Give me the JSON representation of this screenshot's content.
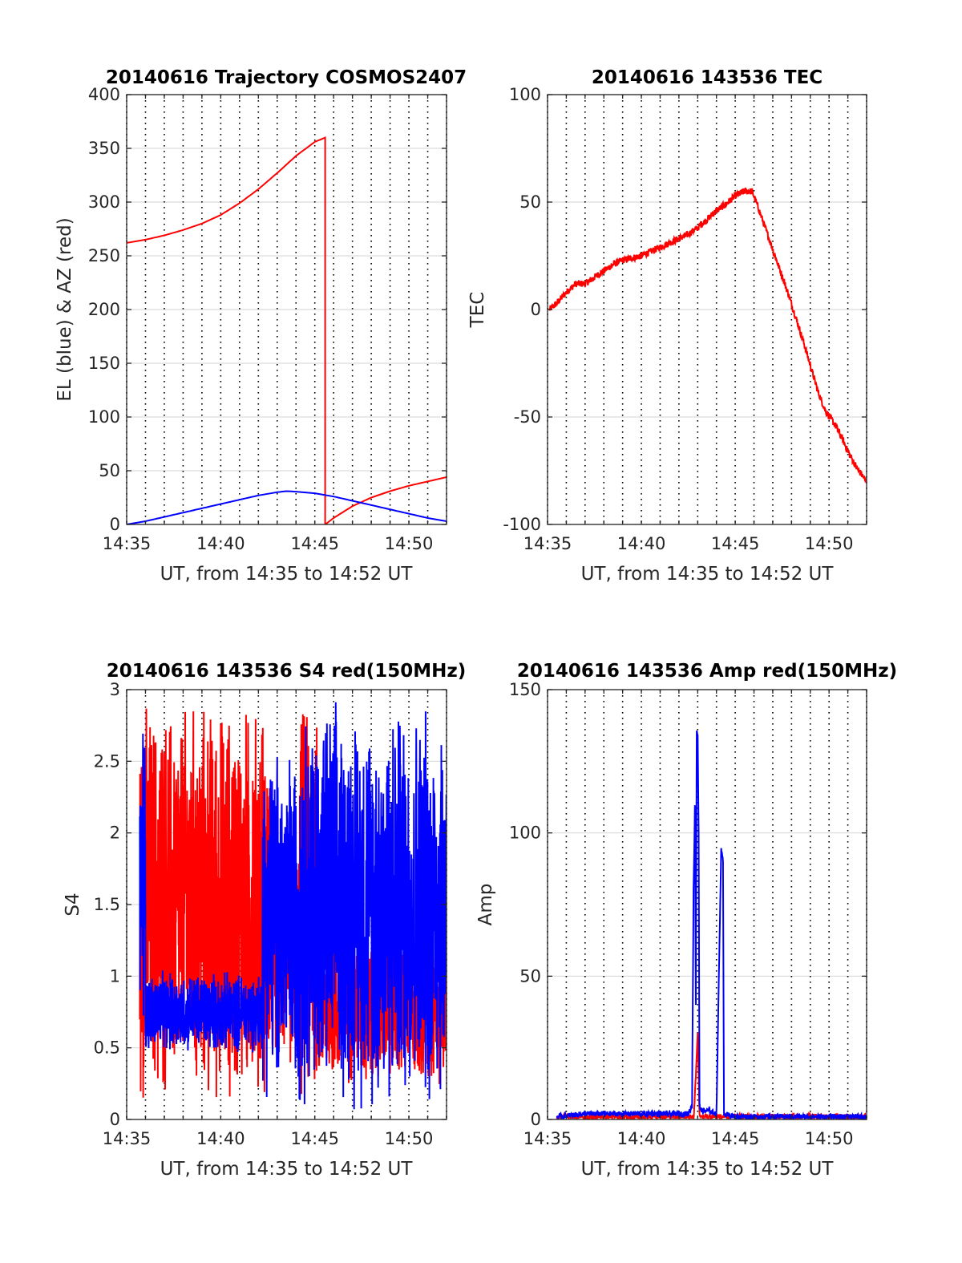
{
  "chart_data": [
    {
      "type": "line",
      "title": "20140616 Trajectory COSMOS2407",
      "xlabel": "UT, from 14:35 to 14:52 UT",
      "ylabel": "EL (blue) & AZ (red)",
      "xlim": [
        0,
        17
      ],
      "ylim": [
        0,
        400
      ],
      "x_unit": "minutes after 14:35 UT",
      "x_ticks": [
        {
          "v": 0,
          "label": "14:35"
        },
        {
          "v": 5,
          "label": "14:40"
        },
        {
          "v": 10,
          "label": "14:45"
        },
        {
          "v": 15,
          "label": "14:50"
        }
      ],
      "y_ticks": [
        {
          "v": 0,
          "label": "0"
        },
        {
          "v": 50,
          "label": "50"
        },
        {
          "v": 100,
          "label": "100"
        },
        {
          "v": 150,
          "label": "150"
        },
        {
          "v": 200,
          "label": "200"
        },
        {
          "v": 250,
          "label": "250"
        },
        {
          "v": 300,
          "label": "300"
        },
        {
          "v": 350,
          "label": "350"
        },
        {
          "v": 400,
          "label": "400"
        }
      ],
      "grid": "vertical dotted every 1 min, horizontal solid",
      "series": [
        {
          "color": "#ff0000",
          "x": [
            0,
            1,
            2,
            3,
            4,
            5,
            6,
            7,
            8,
            9,
            10,
            10.55,
            10.55,
            11,
            12,
            13,
            14,
            15,
            16,
            17
          ],
          "y": [
            262,
            265,
            269,
            274,
            280,
            288,
            299,
            312,
            327,
            343,
            356,
            360,
            0,
            6,
            17,
            25,
            31,
            36,
            40,
            44
          ]
        },
        {
          "color": "#0000ff",
          "x": [
            0,
            1,
            2,
            3,
            4,
            5,
            6,
            7,
            8,
            8.5,
            9,
            10,
            11,
            12,
            13,
            14,
            15,
            16,
            17
          ],
          "y": [
            0,
            3,
            7,
            11,
            15,
            19,
            23,
            27,
            30,
            31,
            30.5,
            29,
            26,
            22,
            18,
            14,
            10,
            6,
            3
          ]
        }
      ]
    },
    {
      "type": "line",
      "title": "20140616 143536 TEC",
      "xlabel": "UT, from 14:35 to 14:52 UT",
      "ylabel": "TEC",
      "xlim": [
        0,
        17
      ],
      "ylim": [
        -100,
        100
      ],
      "x_unit": "minutes after 14:35 UT",
      "x_ticks": [
        {
          "v": 0,
          "label": "14:35"
        },
        {
          "v": 5,
          "label": "14:40"
        },
        {
          "v": 10,
          "label": "14:45"
        },
        {
          "v": 15,
          "label": "14:50"
        }
      ],
      "y_ticks": [
        {
          "v": -100,
          "label": "-100"
        },
        {
          "v": -50,
          "label": "-50"
        },
        {
          "v": 0,
          "label": "0"
        },
        {
          "v": 50,
          "label": "50"
        },
        {
          "v": 100,
          "label": "100"
        }
      ],
      "grid": "vertical dotted every 1 min, horizontal solid",
      "series": [
        {
          "color": "#ff0000",
          "x": [
            0.1,
            0.5,
            1,
            1.5,
            2,
            2.5,
            3,
            3.5,
            4,
            4.5,
            5,
            5.5,
            6,
            6.5,
            7,
            7.5,
            8,
            8.5,
            9,
            9.5,
            10,
            10.5,
            10.9,
            11.2,
            11.6,
            12,
            12.4,
            12.8,
            13.2,
            13.6,
            14,
            14.4,
            14.8,
            15.2,
            15.6,
            16,
            16.5,
            17
          ],
          "y": [
            0,
            3,
            8,
            12,
            12,
            15,
            18,
            21,
            23,
            24,
            25,
            27,
            29,
            31,
            33,
            35,
            38,
            42,
            46,
            49,
            53,
            55,
            55,
            48,
            38,
            28,
            18,
            8,
            -3,
            -14,
            -26,
            -38,
            -47,
            -52,
            -58,
            -66,
            -74,
            -80
          ]
        }
      ]
    },
    {
      "type": "line",
      "title": "20140616 143536 S4 red(150MHz)",
      "xlabel": "UT, from 14:35 to 14:52 UT",
      "ylabel": "S4",
      "xlim": [
        0,
        17
      ],
      "ylim": [
        0,
        3
      ],
      "x_unit": "minutes after 14:35 UT",
      "x_ticks": [
        {
          "v": 0,
          "label": "14:35"
        },
        {
          "v": 5,
          "label": "14:40"
        },
        {
          "v": 10,
          "label": "14:45"
        },
        {
          "v": 15,
          "label": "14:50"
        }
      ],
      "y_ticks": [
        {
          "v": 0,
          "label": "0"
        },
        {
          "v": 0.5,
          "label": "0.5"
        },
        {
          "v": 1,
          "label": "1"
        },
        {
          "v": 1.5,
          "label": "1.5"
        },
        {
          "v": 2,
          "label": "2"
        },
        {
          "v": 2.5,
          "label": "2.5"
        },
        {
          "v": 3,
          "label": "3"
        }
      ],
      "grid": "vertical dotted every 1 min, horizontal solid",
      "series": [
        {
          "color": "#ff0000",
          "note_segments": [
            {
              "x": [
                0.7,
                7.6
              ],
              "y_range": [
                0,
                3
              ]
            },
            {
              "x": [
                7.6,
                9.2
              ],
              "y_range": [
                0.3,
                2.0
              ]
            },
            {
              "x": [
                9.2,
                10.1
              ],
              "y_range": [
                0,
                3
              ]
            },
            {
              "x": [
                10.1,
                17
              ],
              "y_range": [
                0.2,
                1.4
              ]
            }
          ]
        },
        {
          "color": "#0000ff",
          "note_segments": [
            {
              "x": [
                0.7,
                1.0
              ],
              "y_range": [
                0.5,
                3
              ]
            },
            {
              "x": [
                1.0,
                7.2
              ],
              "y_range": [
                0.45,
                1.05
              ]
            },
            {
              "x": [
                7.2,
                9.0
              ],
              "y_range": [
                0.1,
                2.7
              ]
            },
            {
              "x": [
                9.0,
                17
              ],
              "y_range": [
                0,
                3
              ]
            }
          ]
        }
      ]
    },
    {
      "type": "line",
      "title": "20140616 143536 Amp red(150MHz)",
      "xlabel": "UT, from 14:35 to 14:52 UT",
      "ylabel": "Amp",
      "xlim": [
        0,
        17
      ],
      "ylim": [
        0,
        150
      ],
      "x_unit": "minutes after 14:35 UT",
      "x_ticks": [
        {
          "v": 0,
          "label": "14:35"
        },
        {
          "v": 5,
          "label": "14:40"
        },
        {
          "v": 10,
          "label": "14:45"
        },
        {
          "v": 15,
          "label": "14:50"
        }
      ],
      "y_ticks": [
        {
          "v": 0,
          "label": "0"
        },
        {
          "v": 50,
          "label": "50"
        },
        {
          "v": 100,
          "label": "100"
        },
        {
          "v": 150,
          "label": "150"
        }
      ],
      "grid": "vertical dotted every 1 min, horizontal solid",
      "series": [
        {
          "color": "#ff0000",
          "x": [
            0.5,
            7.8,
            8.0,
            8.1,
            8.3,
            9.5,
            17
          ],
          "y": [
            1,
            1,
            30,
            1,
            1,
            1,
            1
          ]
        },
        {
          "color": "#0000ff",
          "x": [
            0.5,
            2,
            4,
            6,
            7.5,
            7.7,
            7.78,
            7.85,
            7.9,
            7.95,
            8.0,
            8.05,
            8.1,
            8.2,
            8.6,
            9.0,
            9.25,
            9.3,
            9.35,
            9.4,
            10,
            12,
            14,
            17
          ],
          "y": [
            1,
            2,
            2,
            2,
            2,
            5,
            80,
            109,
            40,
            136,
            134,
            100,
            5,
            3,
            3,
            2,
            94,
            92,
            90,
            2,
            1,
            1,
            1,
            1
          ]
        }
      ]
    }
  ]
}
